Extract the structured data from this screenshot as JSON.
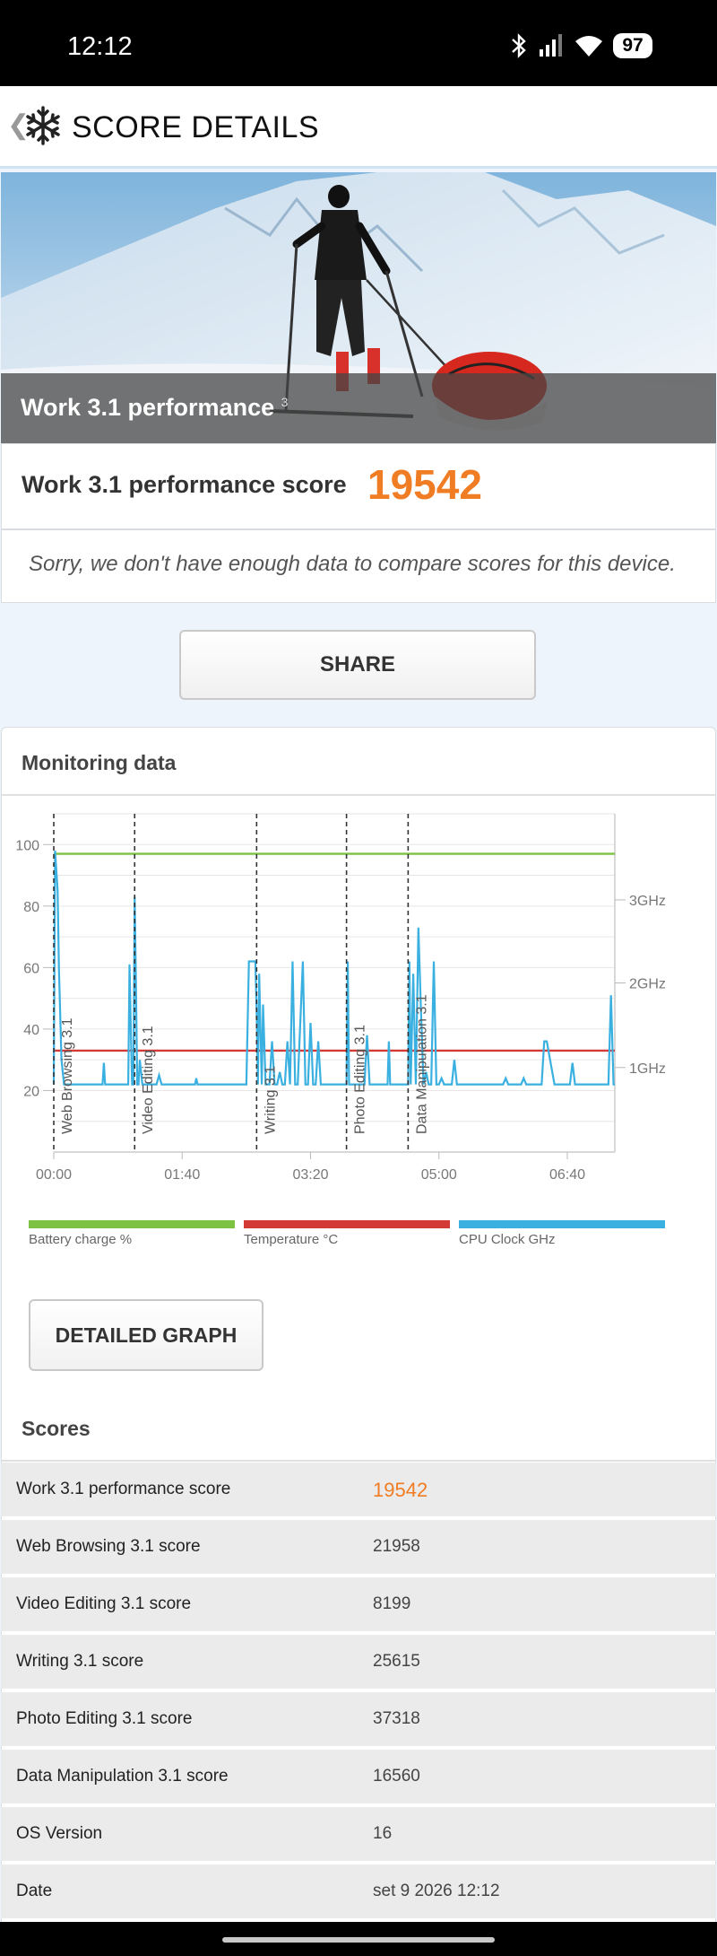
{
  "status_bar": {
    "time": "12:12",
    "battery": "97"
  },
  "app_bar": {
    "title": "SCORE DETAILS"
  },
  "hero": {
    "label": "Work 3.1 performance",
    "superscript": "3"
  },
  "score": {
    "label": "Work 3.1 performance score",
    "value": "19542"
  },
  "comparison_note": "Sorry, we don't have enough data to compare scores for this device.",
  "share_label": "SHARE",
  "monitoring": {
    "title": "Monitoring data"
  },
  "chart_data": {
    "type": "line",
    "x_ticks": [
      "00:00",
      "01:40",
      "03:20",
      "05:00",
      "06:40"
    ],
    "y_left_ticks": [
      "100",
      "80",
      "60",
      "40",
      "20"
    ],
    "y_right_ticks": [
      "3GHz",
      "2GHz",
      "1GHz"
    ],
    "ylim": [
      0,
      110
    ],
    "xlim_seconds": [
      0,
      437
    ],
    "markers": [
      {
        "t": 0,
        "label": "Web Browsing 3.1"
      },
      {
        "t": 63,
        "label": "Video Editing 3.1"
      },
      {
        "t": 158,
        "label": "Writing 3.1"
      },
      {
        "t": 228,
        "label": "Photo Editing 3.1"
      },
      {
        "t": 276,
        "label": "Data Manipulation 3.1"
      }
    ],
    "series": [
      {
        "name": "Battery charge %",
        "color": "#7dc242",
        "x": [
          0,
          437
        ],
        "y": [
          97,
          97
        ]
      },
      {
        "name": "Temperature °C",
        "color": "#d33a36",
        "x": [
          0,
          437
        ],
        "y": [
          33,
          33
        ]
      },
      {
        "name": "CPU Clock GHz",
        "color": "#3ab0e0",
        "x": [
          0,
          1,
          3,
          4,
          6,
          8,
          38,
          39,
          40,
          42,
          44,
          58,
          59,
          60,
          61,
          62,
          63,
          64,
          65,
          66,
          67,
          69,
          70,
          80,
          82,
          84,
          110,
          111,
          112,
          150,
          152,
          153,
          156,
          157,
          158,
          159,
          160,
          162,
          163,
          165,
          166,
          168,
          170,
          172,
          174,
          176,
          178,
          180,
          182,
          184,
          186,
          188,
          190,
          194,
          196,
          198,
          200,
          202,
          204,
          206,
          208,
          210,
          212,
          214,
          216,
          218,
          220,
          222,
          224,
          226,
          228,
          229,
          230,
          232,
          234,
          236,
          238,
          240,
          242,
          244,
          246,
          248,
          260,
          261,
          262,
          264,
          266,
          270,
          274,
          276,
          277,
          278,
          280,
          282,
          284,
          286,
          288,
          290,
          292,
          294,
          296,
          298,
          300,
          302,
          304,
          310,
          312,
          314,
          320,
          350,
          352,
          354,
          364,
          366,
          368,
          380,
          382,
          384,
          390,
          400,
          402,
          404,
          406,
          412,
          414,
          430,
          432,
          434,
          436,
          437
        ],
        "y": [
          22,
          98,
          85,
          60,
          30,
          22,
          22,
          29,
          22,
          22,
          22,
          22,
          61,
          40,
          22,
          22,
          83,
          55,
          22,
          22,
          30,
          22,
          22,
          22,
          25,
          22,
          22,
          24,
          22,
          22,
          62,
          62,
          62,
          62,
          46,
          22,
          58,
          22,
          48,
          22,
          22,
          22,
          36,
          22,
          22,
          26,
          22,
          22,
          36,
          22,
          62,
          22,
          22,
          62,
          22,
          22,
          42,
          22,
          22,
          36,
          22,
          22,
          22,
          22,
          22,
          22,
          22,
          22,
          22,
          22,
          22,
          62,
          22,
          22,
          22,
          22,
          22,
          22,
          22,
          38,
          22,
          22,
          22,
          36,
          22,
          22,
          22,
          22,
          22,
          22,
          62,
          22,
          58,
          22,
          73,
          46,
          22,
          26,
          22,
          22,
          62,
          22,
          22,
          24,
          22,
          22,
          30,
          22,
          22,
          22,
          24,
          22,
          22,
          24,
          22,
          22,
          36,
          36,
          22,
          22,
          22,
          29,
          22,
          22,
          22,
          22,
          22,
          51,
          22,
          22
        ]
      }
    ]
  },
  "legend": [
    {
      "label": "Battery charge %",
      "color": "#7dc242"
    },
    {
      "label": "Temperature °C",
      "color": "#d33a36"
    },
    {
      "label": "CPU Clock GHz",
      "color": "#3ab0e0"
    }
  ],
  "detailed_graph_label": "DETAILED GRAPH",
  "scores": {
    "title": "Scores",
    "rows": [
      {
        "label": "Work 3.1 performance score",
        "value": "19542"
      },
      {
        "label": "Web Browsing 3.1 score",
        "value": "21958"
      },
      {
        "label": "Video Editing 3.1 score",
        "value": "8199"
      },
      {
        "label": "Writing 3.1 score",
        "value": "25615"
      },
      {
        "label": "Photo Editing 3.1 score",
        "value": "37318"
      },
      {
        "label": "Data Manipulation 3.1 score",
        "value": "16560"
      },
      {
        "label": "OS Version",
        "value": "16"
      },
      {
        "label": "Date",
        "value": "set 9 2026 12:12"
      }
    ]
  }
}
